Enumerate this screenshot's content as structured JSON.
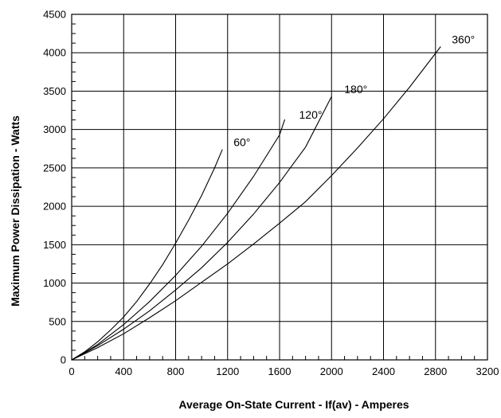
{
  "chart_data": {
    "type": "line",
    "xlabel": "Average On-State Current - If(av) - Amperes",
    "ylabel": "Maximum Power Dissipation - Watts",
    "xlim": [
      0,
      3200
    ],
    "ylim": [
      0,
      4500
    ],
    "xticks": [
      0,
      400,
      800,
      1200,
      1600,
      2000,
      2400,
      2800,
      3200
    ],
    "yticks": [
      0,
      500,
      1000,
      1500,
      2000,
      2500,
      3000,
      3500,
      4000,
      4500
    ],
    "grid": true,
    "series": [
      {
        "name": "60°",
        "x": [
          0,
          100,
          200,
          300,
          400,
          500,
          600,
          700,
          800,
          900,
          1000,
          1100,
          1160
        ],
        "y": [
          0,
          105,
          235,
          390,
          560,
          760,
          990,
          1240,
          1520,
          1820,
          2140,
          2500,
          2740
        ]
      },
      {
        "name": "120°",
        "x": [
          0,
          100,
          200,
          400,
          600,
          800,
          1000,
          1200,
          1400,
          1600,
          1640
        ],
        "y": [
          0,
          95,
          200,
          460,
          760,
          1100,
          1480,
          1910,
          2390,
          2930,
          3130
        ]
      },
      {
        "name": "180°",
        "x": [
          0,
          100,
          200,
          400,
          600,
          800,
          1000,
          1200,
          1400,
          1600,
          1800,
          2000
        ],
        "y": [
          0,
          90,
          185,
          400,
          640,
          910,
          1200,
          1530,
          1900,
          2310,
          2770,
          3430
        ]
      },
      {
        "name": "360°",
        "x": [
          0,
          200,
          400,
          600,
          800,
          1000,
          1200,
          1400,
          1600,
          1800,
          2000,
          2200,
          2400,
          2600,
          2840
        ],
        "y": [
          0,
          160,
          340,
          550,
          770,
          1010,
          1250,
          1510,
          1780,
          2060,
          2400,
          2760,
          3140,
          3550,
          4080
        ]
      }
    ]
  }
}
